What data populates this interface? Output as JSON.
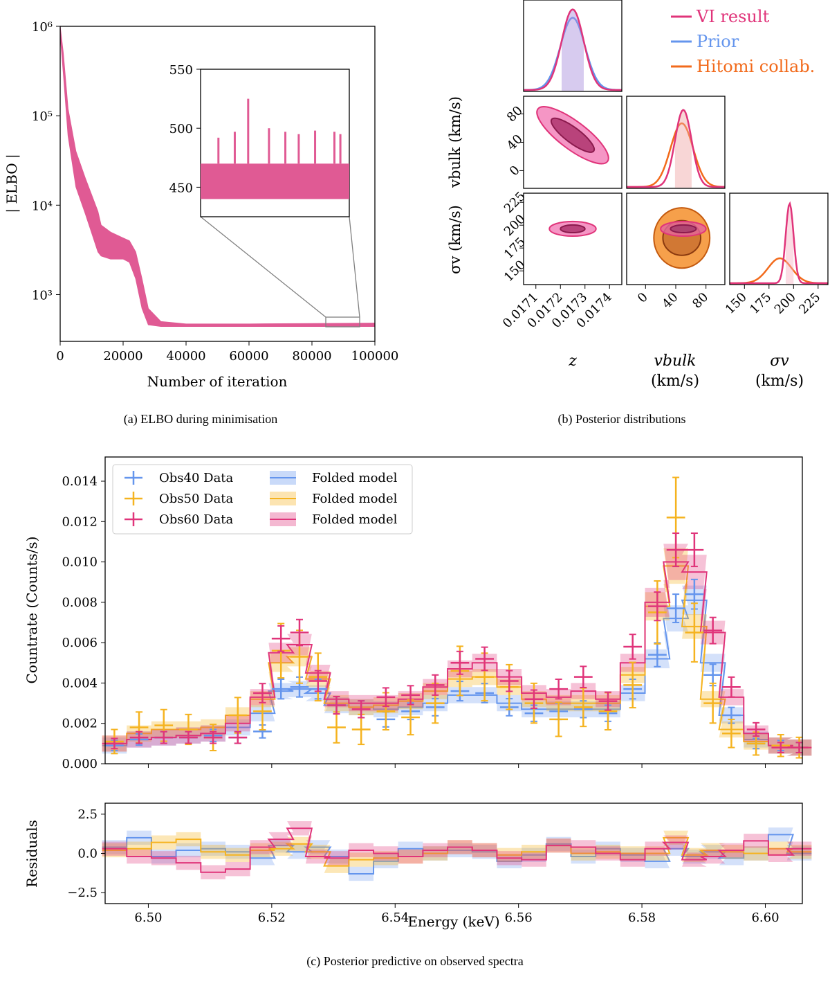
{
  "captions": {
    "a": "(a) ELBO during minimisation",
    "b": "(b) Posterior distributions",
    "c": "(c) Posterior predictive on observed spectra"
  },
  "colors": {
    "vi": "#e0347a",
    "elbo": "#e05a94",
    "prior": "#6495ed",
    "hitomi": "#f26a1b",
    "obs50": "#f5b31f",
    "frame": "#000000",
    "zoom": "#808080"
  },
  "chart_data": [
    {
      "id": "elbo",
      "type": "line",
      "title": "",
      "xlabel": "Number of iteration",
      "ylabel": "| ELBO |",
      "xlim": [
        0,
        100000
      ],
      "ylim": [
        300,
        1000000
      ],
      "yscale": "log",
      "xticks": [
        0,
        20000,
        40000,
        60000,
        80000,
        100000
      ],
      "xtick_labels": [
        "0",
        "20000",
        "40000",
        "60000",
        "80000",
        "100000"
      ],
      "yticks": [
        1000,
        10000,
        100000,
        1000000
      ],
      "ytick_labels": [
        "10³",
        "10⁴",
        "10⁵",
        "10⁶"
      ],
      "series": [
        {
          "name": "|ELBO|",
          "x": [
            0,
            1000,
            2500,
            5000,
            8000,
            12000,
            13000,
            16000,
            20000,
            22000,
            24000,
            26000,
            28000,
            32000,
            40000,
            60000,
            80000,
            100000
          ],
          "upper": [
            1000000,
            500000,
            120000,
            40000,
            20000,
            8500,
            6000,
            5000,
            4300,
            4000,
            3000,
            1500,
            700,
            500,
            470,
            470,
            475,
            480
          ],
          "lower": [
            800000,
            300000,
            60000,
            16000,
            8000,
            3000,
            2700,
            2500,
            2500,
            2300,
            1500,
            700,
            460,
            440,
            440,
            440,
            440,
            440
          ]
        }
      ],
      "inset": {
        "xlim": [
          85000,
          95000
        ],
        "ylim": [
          425,
          550
        ],
        "yticks": [
          450,
          500,
          550
        ],
        "ytick_labels": [
          "450",
          "500",
          "550"
        ],
        "baseline_low": 440,
        "baseline_high": 470,
        "spikes": [
          {
            "x": 86200,
            "y": 492
          },
          {
            "x": 87300,
            "y": 497
          },
          {
            "x": 88200,
            "y": 525
          },
          {
            "x": 89600,
            "y": 500
          },
          {
            "x": 90700,
            "y": 497
          },
          {
            "x": 91600,
            "y": 495
          },
          {
            "x": 92700,
            "y": 498
          },
          {
            "x": 94000,
            "y": 497
          },
          {
            "x": 94400,
            "y": 495
          }
        ]
      }
    },
    {
      "id": "corner",
      "type": "corner",
      "params": [
        "z",
        "v_bulk",
        "σ_v"
      ],
      "param_labels": {
        "z": "z",
        "v_bulk": "vbulk",
        "sigma_v": "σv",
        "unit": "(km/s)",
        "v_bulk_y": "vbulk (km/s)",
        "sigma_v_y": "σv (km/s)"
      },
      "legend": [
        "VI result",
        "Prior",
        "Hitomi collab."
      ],
      "z": {
        "range": [
          0.01705,
          0.01745
        ],
        "ticks": [
          0.0171,
          0.0172,
          0.0173,
          0.0174
        ],
        "tick_labels": [
          "0.0171",
          "0.0172",
          "0.0173",
          "0.0174"
        ],
        "vi": {
          "mean": 0.01725,
          "sd": 4.5e-05
        },
        "prior": {
          "mean": 0.01725,
          "sd": 5e-05
        }
      },
      "v_bulk": {
        "range": [
          -25,
          105
        ],
        "ticks": [
          0,
          40,
          80
        ],
        "tick_labels": [
          "0",
          "40",
          "80"
        ],
        "vi": {
          "mean": 50,
          "sd": 11
        },
        "hitomi": {
          "mean": 48,
          "sd": 15
        }
      },
      "sigma_v": {
        "range": [
          135,
          235
        ],
        "ticks": [
          150,
          175,
          200,
          225
        ],
        "tick_labels": [
          "150",
          "175",
          "200",
          "225"
        ],
        "vi": {
          "mean": 196,
          "sd": 4
        },
        "hitomi": {
          "mean": 186,
          "sd": 12
        }
      },
      "corr_z_vbulk": -0.9
    },
    {
      "id": "spectra",
      "type": "step",
      "xlabel": "Energy (keV)",
      "ylabel": "Countrate (Counts/s)",
      "residual_ylabel": "Residuals",
      "xlim": [
        6.493,
        6.606
      ],
      "ylim": [
        0,
        0.0152
      ],
      "residual_ylim": [
        -3.2,
        3.2
      ],
      "xticks": [
        6.5,
        6.52,
        6.54,
        6.56,
        6.58,
        6.6
      ],
      "xtick_labels": [
        "6.50",
        "6.52",
        "6.54",
        "6.56",
        "6.58",
        "6.60"
      ],
      "yticks": [
        0,
        0.002,
        0.004,
        0.006,
        0.008,
        0.01,
        0.012,
        0.014
      ],
      "ytick_labels": [
        "0.000",
        "0.002",
        "0.004",
        "0.006",
        "0.008",
        "0.010",
        "0.012",
        "0.014"
      ],
      "residual_yticks": [
        -2.5,
        0,
        2.5
      ],
      "residual_ytick_labels": [
        "−2.5",
        "0.0",
        "2.5"
      ],
      "legend": [
        "Obs40 Data",
        "Obs50 Data",
        "Obs60 Data",
        "Folded model",
        "Folded model",
        "Folded model"
      ],
      "series": [
        {
          "name": "Obs40",
          "color": "#6495ed",
          "x": [
            6.4945,
            6.4985,
            6.5025,
            6.5065,
            6.5105,
            6.5145,
            6.5185,
            6.5215,
            6.5245,
            6.5275,
            6.5305,
            6.5345,
            6.5385,
            6.5425,
            6.5465,
            6.5505,
            6.5545,
            6.5585,
            6.5625,
            6.5665,
            6.5705,
            6.5745,
            6.5785,
            6.5825,
            6.5855,
            6.5885,
            6.5915,
            6.5945,
            6.5985,
            6.6025,
            6.6055
          ],
          "y": [
            0.0009,
            0.0012,
            0.0013,
            0.0013,
            0.0014,
            0.0013,
            0.0016,
            0.0037,
            0.0038,
            0.0037,
            0.0029,
            0.0027,
            0.0022,
            0.0026,
            0.0028,
            0.0036,
            0.0035,
            0.0028,
            0.0025,
            0.0026,
            0.0027,
            0.0025,
            0.0037,
            0.0054,
            0.0077,
            0.0084,
            0.0044,
            0.0024,
            0.001,
            0.0009,
            0.0008
          ],
          "model": [
            0.0009,
            0.0012,
            0.0013,
            0.0014,
            0.0015,
            0.0018,
            0.0025,
            0.0036,
            0.0037,
            0.0035,
            0.0029,
            0.0028,
            0.0027,
            0.0028,
            0.003,
            0.0034,
            0.0034,
            0.003,
            0.0027,
            0.0027,
            0.0027,
            0.0027,
            0.0035,
            0.0052,
            0.0072,
            0.0081,
            0.005,
            0.0024,
            0.0012,
            0.0009,
            0.0008
          ],
          "residuals": [
            0.4,
            1.0,
            -0.2,
            0.2,
            0.3,
            0.1,
            -0.3,
            0.5,
            0.1,
            0.4,
            -0.2,
            -1.3,
            -0.5,
            0.3,
            0.0,
            0.2,
            0.1,
            -0.5,
            -0.1,
            0.6,
            -0.2,
            0.3,
            -0.1,
            -0.5,
            0.3,
            -0.2,
            0.1,
            -0.3,
            0.0,
            1.2,
            0.0
          ]
        },
        {
          "name": "Obs50",
          "color": "#f5b31f",
          "x": [
            6.4945,
            6.4985,
            6.5025,
            6.5065,
            6.5105,
            6.5145,
            6.5185,
            6.5215,
            6.5245,
            6.5275,
            6.5305,
            6.5345,
            6.5385,
            6.5425,
            6.5465,
            6.5505,
            6.5545,
            6.5585,
            6.5625,
            6.5665,
            6.5705,
            6.5745,
            6.5785,
            6.5825,
            6.5855,
            6.5885,
            6.5915,
            6.5945,
            6.5985,
            6.6025,
            6.6055
          ],
          "y": [
            0.0011,
            0.0018,
            0.0019,
            0.0017,
            0.0013,
            0.0024,
            0.0026,
            0.0056,
            0.0053,
            0.0043,
            0.0018,
            0.0017,
            0.0026,
            0.0023,
            0.003,
            0.0046,
            0.0043,
            0.0038,
            0.003,
            0.0022,
            0.0028,
            0.0026,
            0.0039,
            0.0075,
            0.0122,
            0.0065,
            0.003,
            0.0015,
            0.001,
            0.0009,
            0.0008
          ],
          "model": [
            0.001,
            0.0015,
            0.0017,
            0.0017,
            0.0018,
            0.0024,
            0.0032,
            0.005,
            0.0053,
            0.0042,
            0.003,
            0.0028,
            0.0029,
            0.0031,
            0.0036,
            0.0042,
            0.0043,
            0.0038,
            0.0032,
            0.003,
            0.003,
            0.003,
            0.0044,
            0.0078,
            0.0098,
            0.0068,
            0.0032,
            0.0017,
            0.0011,
            0.0009,
            0.0008
          ],
          "residuals": [
            0.2,
            0.3,
            0.7,
            0.9,
            0.1,
            -0.1,
            0.2,
            0.3,
            0.6,
            0.1,
            -0.8,
            -0.4,
            -0.3,
            -0.2,
            0.0,
            0.4,
            0.2,
            -0.1,
            0.1,
            0.5,
            0.0,
            0.1,
            0.0,
            0.0,
            1.0,
            -0.1,
            0.2,
            0.1,
            0.0,
            0.3,
            0.1
          ]
        },
        {
          "name": "Obs60",
          "color": "#e0347a",
          "x": [
            6.4945,
            6.4985,
            6.5025,
            6.5065,
            6.5105,
            6.5145,
            6.5185,
            6.5215,
            6.5245,
            6.5275,
            6.5305,
            6.5345,
            6.5385,
            6.5425,
            6.5465,
            6.5505,
            6.5545,
            6.5585,
            6.5625,
            6.5665,
            6.5705,
            6.5745,
            6.5785,
            6.5825,
            6.5855,
            6.5885,
            6.5915,
            6.5945,
            6.5985,
            6.6025,
            6.6055
          ],
          "y": [
            0.001,
            0.0013,
            0.0013,
            0.0013,
            0.0013,
            0.0013,
            0.0035,
            0.0062,
            0.0065,
            0.0041,
            0.0029,
            0.0027,
            0.0033,
            0.0034,
            0.0039,
            0.005,
            0.0052,
            0.0041,
            0.0032,
            0.0037,
            0.0043,
            0.0031,
            0.0058,
            0.0078,
            0.0106,
            0.0106,
            0.0066,
            0.0038,
            0.0017,
            0.0008,
            0.0008
          ],
          "model": [
            0.001,
            0.0012,
            0.0013,
            0.0014,
            0.0015,
            0.002,
            0.0033,
            0.0055,
            0.0059,
            0.0045,
            0.0032,
            0.003,
            0.003,
            0.0032,
            0.0038,
            0.0047,
            0.005,
            0.0043,
            0.0035,
            0.0033,
            0.0036,
            0.0032,
            0.005,
            0.008,
            0.01,
            0.0095,
            0.0065,
            0.0033,
            0.0015,
            0.0009,
            0.0008
          ],
          "residuals": [
            0.3,
            -0.2,
            -0.3,
            -0.6,
            -1.2,
            -1.0,
            0.4,
            0.9,
            1.6,
            -0.2,
            -0.3,
            0.2,
            0.0,
            -0.2,
            0.2,
            0.4,
            0.2,
            -0.3,
            -0.4,
            0.5,
            0.4,
            0.0,
            -0.4,
            0.3,
            0.7,
            -0.4,
            -0.2,
            0.2,
            0.8,
            -0.1,
            0.3
          ]
        }
      ]
    }
  ]
}
